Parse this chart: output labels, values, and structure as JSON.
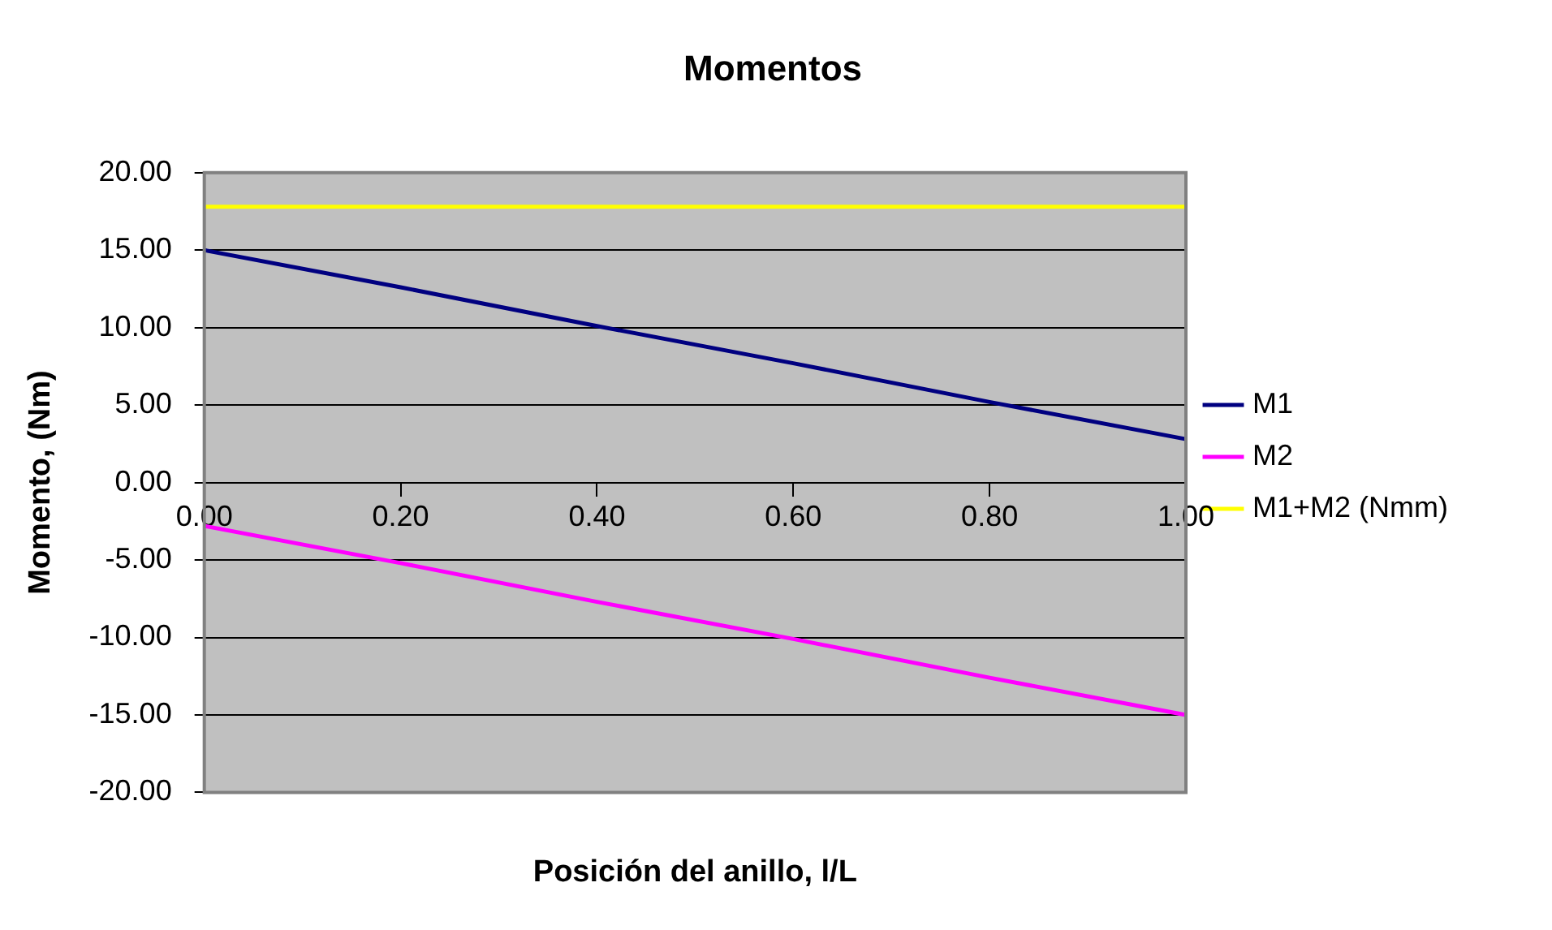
{
  "chart_data": {
    "type": "line",
    "title": "Momentos",
    "xlabel": "Posición del anillo, l/L",
    "ylabel": "Momento, (Nm)",
    "x": [
      0,
      0.2,
      0.4,
      0.6,
      0.8,
      1
    ],
    "series": [
      {
        "name": "M1",
        "color": "#000080",
        "values": [
          15,
          12.6,
          10.1,
          7.7,
          5.2,
          2.8
        ]
      },
      {
        "name": "M2",
        "color": "#ff00ff",
        "values": [
          -2.8,
          -5.2,
          -7.7,
          -10.1,
          -12.6,
          -15
        ]
      },
      {
        "name": "M1+M2 (Nmm)",
        "color": "#ffff00",
        "values": [
          17.8,
          17.8,
          17.8,
          17.8,
          17.8,
          17.8
        ]
      }
    ],
    "xlim": [
      0,
      1
    ],
    "xticks": [
      {
        "value": 0,
        "label": "0.00"
      },
      {
        "value": 0.2,
        "label": "0.20"
      },
      {
        "value": 0.4,
        "label": "0.40"
      },
      {
        "value": 0.6,
        "label": "0.60"
      },
      {
        "value": 0.8,
        "label": "0.80"
      },
      {
        "value": 1,
        "label": "1.00"
      }
    ],
    "ylim": [
      -20,
      20
    ],
    "yticks": [
      {
        "value": -20,
        "label": "-20.00"
      },
      {
        "value": -15,
        "label": "-15.00"
      },
      {
        "value": -10,
        "label": "-10.00"
      },
      {
        "value": -5,
        "label": "-5.00"
      },
      {
        "value": 0,
        "label": "0.00"
      },
      {
        "value": 5,
        "label": "5.00"
      },
      {
        "value": 10,
        "label": "10.00"
      },
      {
        "value": 15,
        "label": "15.00"
      },
      {
        "value": 20,
        "label": "20.00"
      }
    ],
    "grid": "y",
    "legend": "right",
    "marker": "none",
    "line_style": "solid"
  }
}
